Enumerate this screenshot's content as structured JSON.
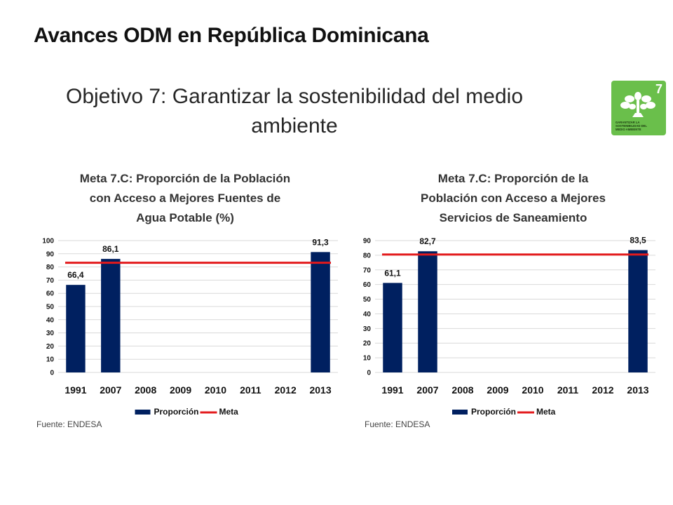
{
  "header": {
    "title": "Avances ODM en República Dominicana",
    "subtitle_line1": "Objetivo 7: Garantizar la sostenibilidad del medio",
    "subtitle_line2": "ambiente"
  },
  "badge": {
    "number": "7",
    "text_line1": "GARANTIZAR LA",
    "text_line2": "SOSTENIBILIDAD DEL",
    "text_line3": "MEDIO AMBIENTE",
    "color": "#6abf4b",
    "icon": "tree-icon"
  },
  "colors": {
    "bar": "#002060",
    "meta": "#e31a1c",
    "grid": "#d9d9d9"
  },
  "chart_data": [
    {
      "type": "bar",
      "title_lines": [
        "Meta 7.C: Proporción de la Población",
        "con Acceso a Mejores Fuentes de",
        "Agua Potable (%)"
      ],
      "categories": [
        "1991",
        "2007",
        "2008",
        "2009",
        "2010",
        "2011",
        "2012",
        "2013"
      ],
      "series": [
        {
          "name": "Proporción",
          "values": [
            66.4,
            86.1,
            null,
            null,
            null,
            null,
            null,
            91.3
          ],
          "labels": [
            "66,4",
            "86,1",
            "",
            "",
            "",
            "",
            "",
            "91,3"
          ]
        },
        {
          "name": "Meta",
          "type": "line",
          "value": 83.2
        }
      ],
      "ylim": [
        0,
        100
      ],
      "yticks": [
        0,
        10,
        20,
        30,
        40,
        50,
        60,
        70,
        80,
        90,
        100
      ],
      "ytick_labels": [
        "0",
        "10",
        "20",
        "30",
        "40",
        "50",
        "60",
        "70",
        "80",
        "90",
        "100"
      ],
      "grid": true,
      "legend": "bottom",
      "source": "Fuente: ENDESA"
    },
    {
      "type": "bar",
      "title_lines": [
        "Meta 7.C: Proporción de la",
        "Población con Acceso a Mejores",
        "Servicios de Saneamiento"
      ],
      "categories": [
        "1991",
        "2007",
        "2008",
        "2009",
        "2010",
        "2011",
        "2012",
        "2013"
      ],
      "series": [
        {
          "name": "Proporción",
          "values": [
            61.1,
            82.7,
            null,
            null,
            null,
            null,
            null,
            83.5
          ],
          "labels": [
            "61,1",
            "82,7",
            "",
            "",
            "",
            "",
            "",
            "83,5"
          ]
        },
        {
          "name": "Meta",
          "type": "line",
          "value": 80.5
        }
      ],
      "ylim": [
        0,
        90
      ],
      "yticks": [
        0,
        10,
        20,
        30,
        40,
        50,
        60,
        70,
        80,
        90
      ],
      "ytick_labels": [
        "0",
        "10",
        "20",
        "30",
        "40",
        "50",
        "60",
        "70",
        "80",
        "90"
      ],
      "grid": true,
      "legend": "bottom",
      "source": "Fuente: ENDESA"
    }
  ]
}
